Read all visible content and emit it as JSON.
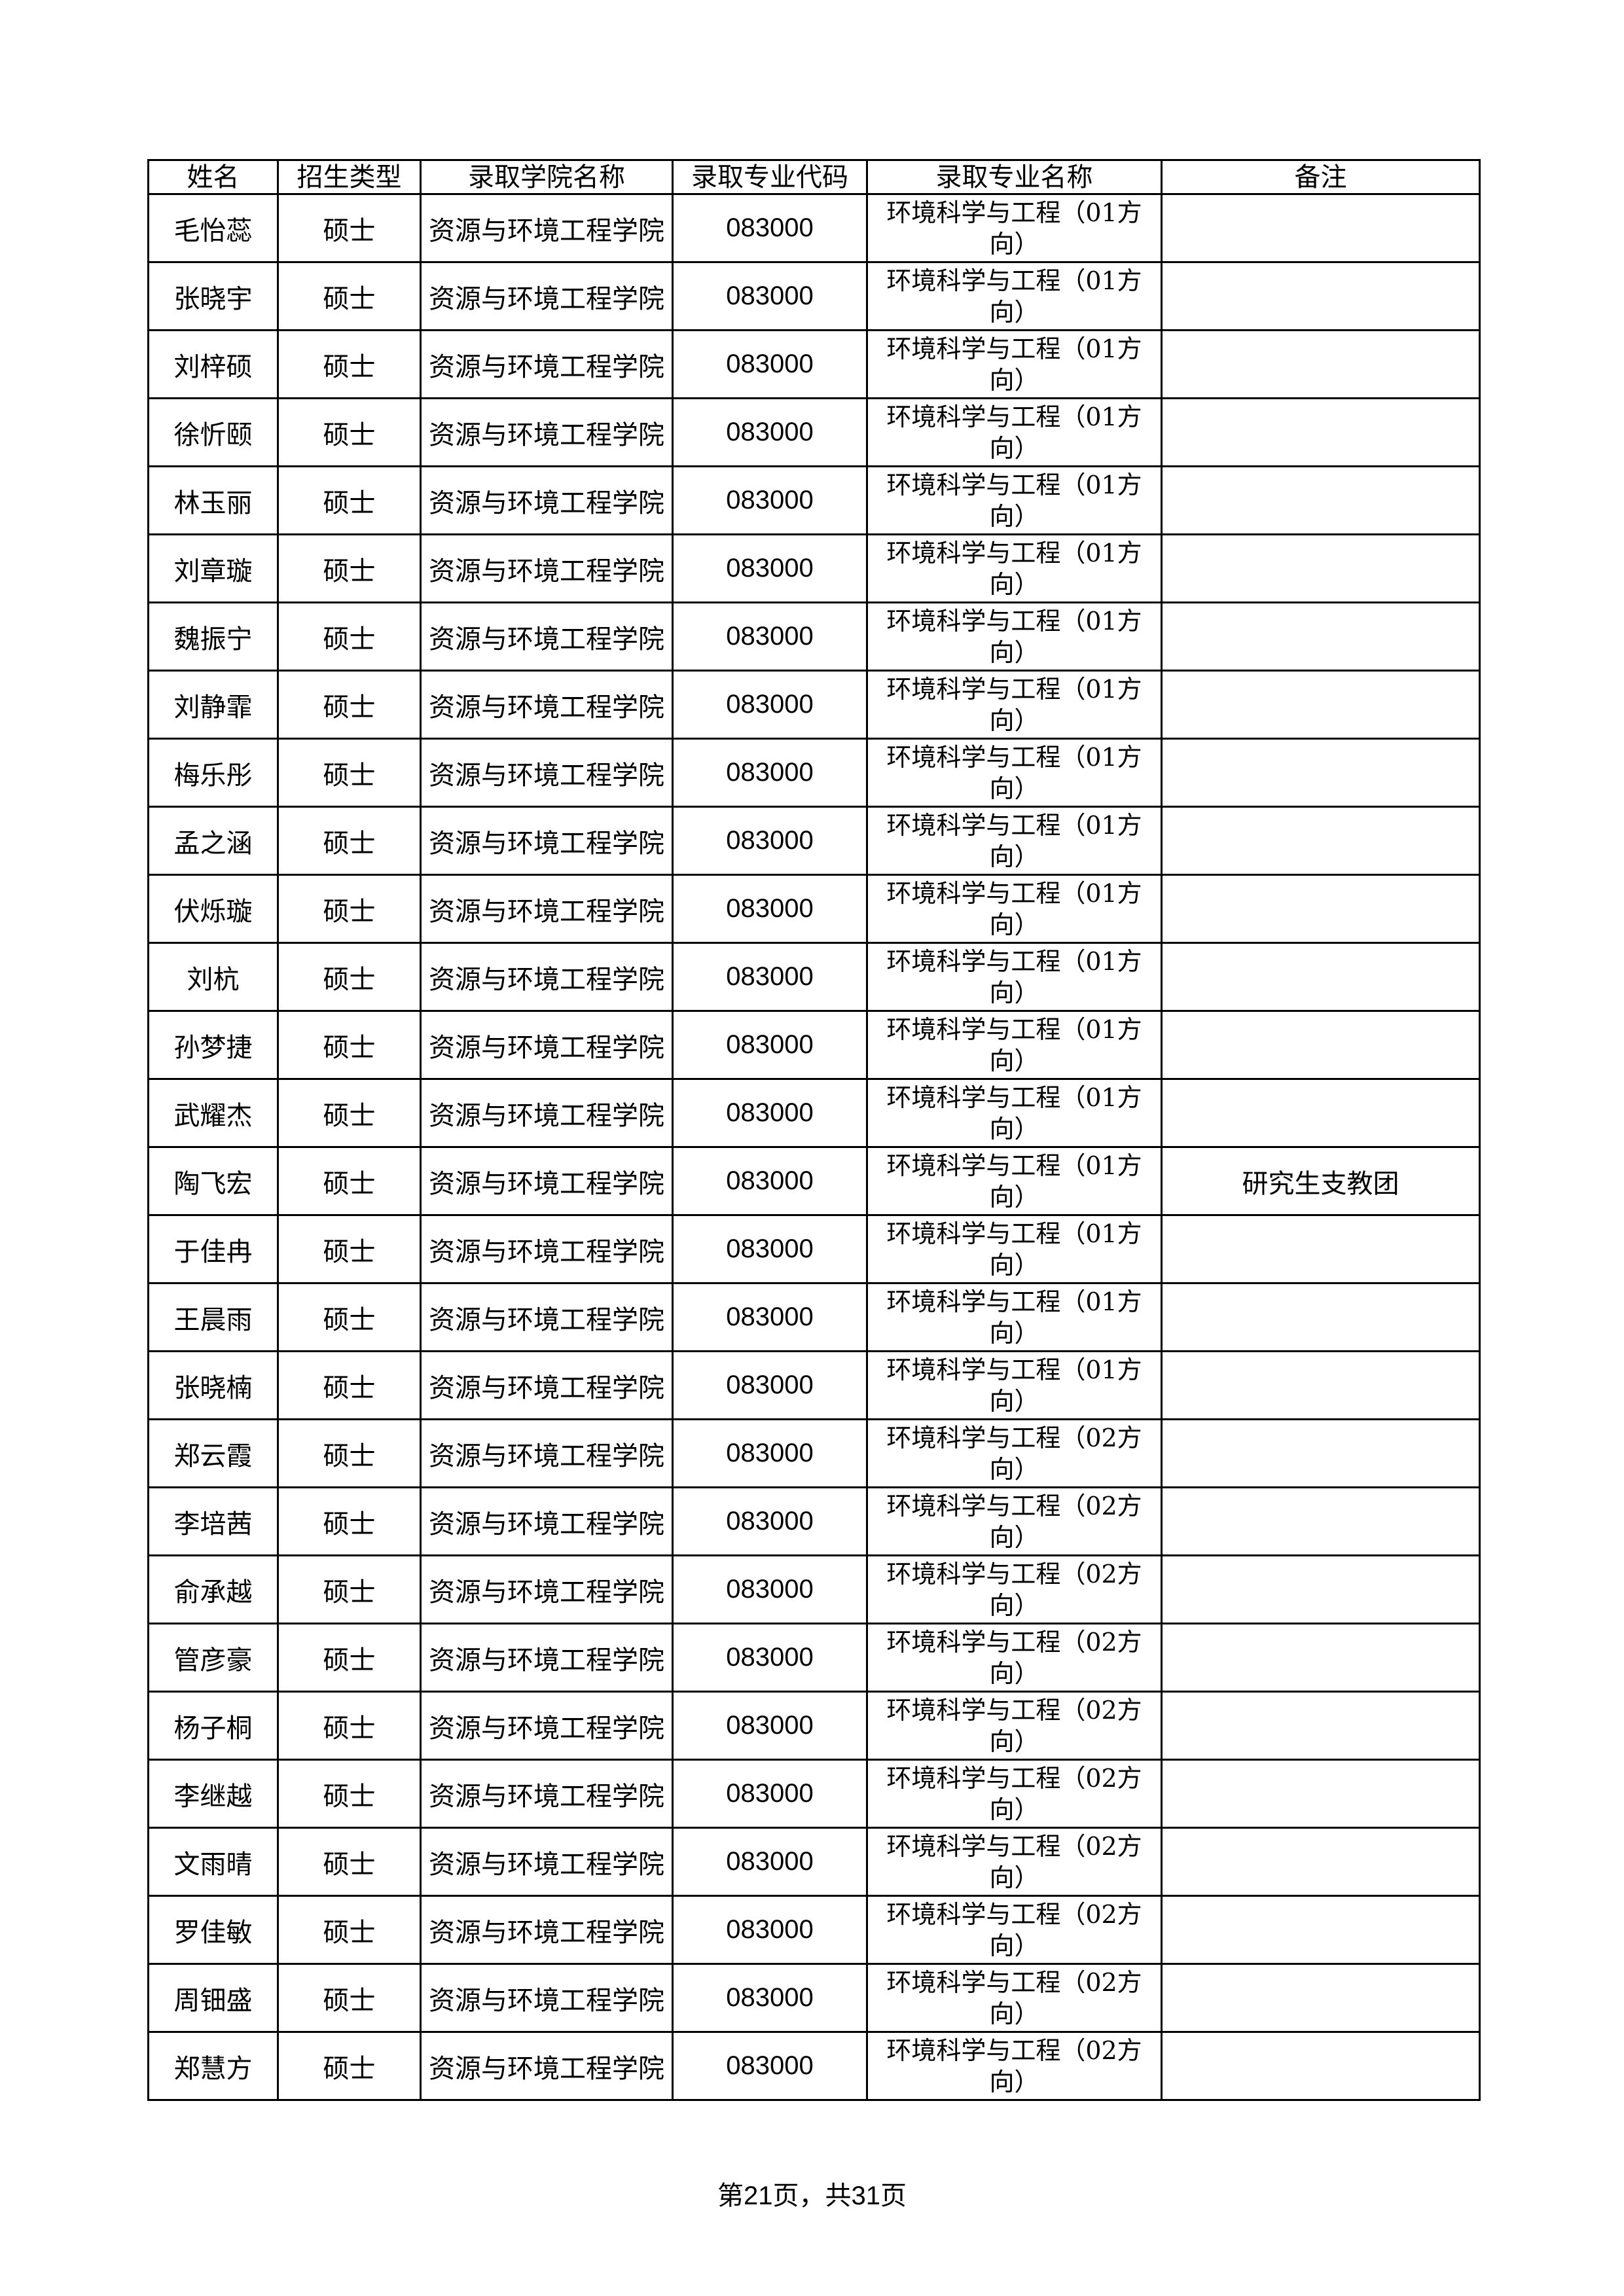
{
  "table": {
    "headers": [
      "姓名",
      "招生类型",
      "录取学院名称",
      "录取专业代码",
      "录取专业名称",
      "备注"
    ],
    "rows": [
      {
        "name": "毛怡蕊",
        "type": "硕士",
        "college": "资源与环境工程学院",
        "code": "083000",
        "major": "环境科学与工程（01方向）",
        "note": ""
      },
      {
        "name": "张晓宇",
        "type": "硕士",
        "college": "资源与环境工程学院",
        "code": "083000",
        "major": "环境科学与工程（01方向）",
        "note": ""
      },
      {
        "name": "刘梓硕",
        "type": "硕士",
        "college": "资源与环境工程学院",
        "code": "083000",
        "major": "环境科学与工程（01方向）",
        "note": ""
      },
      {
        "name": "徐忻颐",
        "type": "硕士",
        "college": "资源与环境工程学院",
        "code": "083000",
        "major": "环境科学与工程（01方向）",
        "note": ""
      },
      {
        "name": "林玉丽",
        "type": "硕士",
        "college": "资源与环境工程学院",
        "code": "083000",
        "major": "环境科学与工程（01方向）",
        "note": ""
      },
      {
        "name": "刘章璇",
        "type": "硕士",
        "college": "资源与环境工程学院",
        "code": "083000",
        "major": "环境科学与工程（01方向）",
        "note": ""
      },
      {
        "name": "魏振宁",
        "type": "硕士",
        "college": "资源与环境工程学院",
        "code": "083000",
        "major": "环境科学与工程（01方向）",
        "note": ""
      },
      {
        "name": "刘静霏",
        "type": "硕士",
        "college": "资源与环境工程学院",
        "code": "083000",
        "major": "环境科学与工程（01方向）",
        "note": ""
      },
      {
        "name": "梅乐彤",
        "type": "硕士",
        "college": "资源与环境工程学院",
        "code": "083000",
        "major": "环境科学与工程（01方向）",
        "note": ""
      },
      {
        "name": "孟之涵",
        "type": "硕士",
        "college": "资源与环境工程学院",
        "code": "083000",
        "major": "环境科学与工程（01方向）",
        "note": ""
      },
      {
        "name": "伏烁璇",
        "type": "硕士",
        "college": "资源与环境工程学院",
        "code": "083000",
        "major": "环境科学与工程（01方向）",
        "note": ""
      },
      {
        "name": "刘杭",
        "type": "硕士",
        "college": "资源与环境工程学院",
        "code": "083000",
        "major": "环境科学与工程（01方向）",
        "note": ""
      },
      {
        "name": "孙梦捷",
        "type": "硕士",
        "college": "资源与环境工程学院",
        "code": "083000",
        "major": "环境科学与工程（01方向）",
        "note": ""
      },
      {
        "name": "武耀杰",
        "type": "硕士",
        "college": "资源与环境工程学院",
        "code": "083000",
        "major": "环境科学与工程（01方向）",
        "note": ""
      },
      {
        "name": "陶飞宏",
        "type": "硕士",
        "college": "资源与环境工程学院",
        "code": "083000",
        "major": "环境科学与工程（01方向）",
        "note": "研究生支教团"
      },
      {
        "name": "于佳冉",
        "type": "硕士",
        "college": "资源与环境工程学院",
        "code": "083000",
        "major": "环境科学与工程（01方向）",
        "note": ""
      },
      {
        "name": "王晨雨",
        "type": "硕士",
        "college": "资源与环境工程学院",
        "code": "083000",
        "major": "环境科学与工程（01方向）",
        "note": ""
      },
      {
        "name": "张晓楠",
        "type": "硕士",
        "college": "资源与环境工程学院",
        "code": "083000",
        "major": "环境科学与工程（01方向）",
        "note": ""
      },
      {
        "name": "郑云霞",
        "type": "硕士",
        "college": "资源与环境工程学院",
        "code": "083000",
        "major": "环境科学与工程（02方向）",
        "note": ""
      },
      {
        "name": "李培茜",
        "type": "硕士",
        "college": "资源与环境工程学院",
        "code": "083000",
        "major": "环境科学与工程（02方向）",
        "note": ""
      },
      {
        "name": "俞承越",
        "type": "硕士",
        "college": "资源与环境工程学院",
        "code": "083000",
        "major": "环境科学与工程（02方向）",
        "note": ""
      },
      {
        "name": "管彦豪",
        "type": "硕士",
        "college": "资源与环境工程学院",
        "code": "083000",
        "major": "环境科学与工程（02方向）",
        "note": ""
      },
      {
        "name": "杨子桐",
        "type": "硕士",
        "college": "资源与环境工程学院",
        "code": "083000",
        "major": "环境科学与工程（02方向）",
        "note": ""
      },
      {
        "name": "李继越",
        "type": "硕士",
        "college": "资源与环境工程学院",
        "code": "083000",
        "major": "环境科学与工程（02方向）",
        "note": ""
      },
      {
        "name": "文雨晴",
        "type": "硕士",
        "college": "资源与环境工程学院",
        "code": "083000",
        "major": "环境科学与工程（02方向）",
        "note": ""
      },
      {
        "name": "罗佳敏",
        "type": "硕士",
        "college": "资源与环境工程学院",
        "code": "083000",
        "major": "环境科学与工程（02方向）",
        "note": ""
      },
      {
        "name": "周钿盛",
        "type": "硕士",
        "college": "资源与环境工程学院",
        "code": "083000",
        "major": "环境科学与工程（02方向）",
        "note": ""
      },
      {
        "name": "郑慧方",
        "type": "硕士",
        "college": "资源与环境工程学院",
        "code": "083000",
        "major": "环境科学与工程（02方向）",
        "note": ""
      }
    ]
  },
  "footer": {
    "prefix": "第",
    "page": "21",
    "middle": "页，共",
    "total": "31",
    "suffix": "页"
  }
}
